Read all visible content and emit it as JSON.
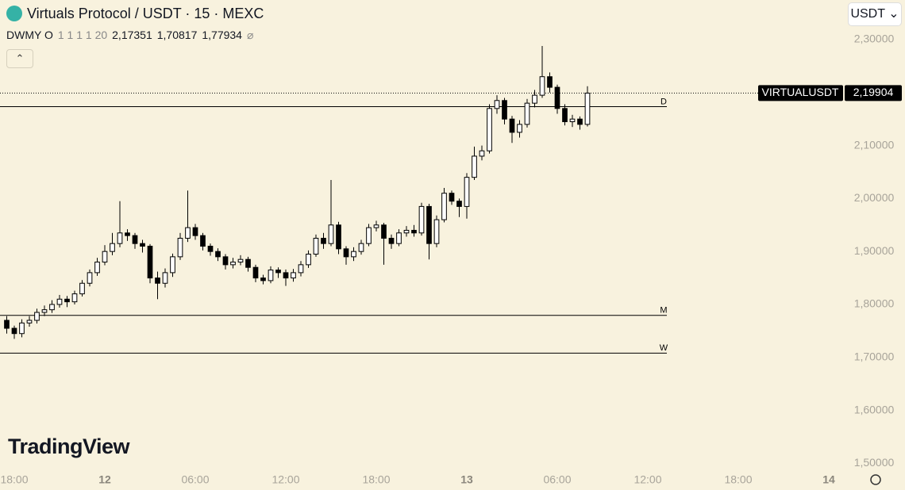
{
  "chart_data": {
    "type": "candlestick",
    "title": "Virtuals Protocol / USDT · 15 · MEXC",
    "currency": "USDT",
    "watermark": "TradingView",
    "indicator": {
      "name": "DWMY O",
      "params": "1 1 1 1 20",
      "symbol": "⌀",
      "levels": [
        {
          "name": "D",
          "value": 2.17351,
          "label": "2,17351"
        },
        {
          "name": "W",
          "value": 1.70817,
          "label": "1,70817"
        },
        {
          "name": "M",
          "value": 1.77934,
          "label": "1,77934"
        }
      ]
    },
    "last_price": {
      "symbol": "VIRTUALUSDT",
      "value": 2.19904,
      "label": "2,19904"
    },
    "colors": {
      "up": "#ffffff",
      "down": "#000000",
      "border": "#000000"
    },
    "x": [
      -0.5,
      0,
      0.5,
      1,
      1.5,
      2,
      2.5,
      3,
      3.5,
      4,
      4.5,
      5,
      5.5,
      6,
      6.5,
      7,
      7.5,
      8,
      8.5,
      9,
      9.5,
      10,
      10.5,
      11,
      11.5,
      12,
      12.5,
      13,
      13.5,
      14,
      14.5,
      15,
      15.5,
      16,
      16.5,
      17,
      17.5,
      18,
      18.5,
      19,
      19.5,
      20,
      20.5,
      21,
      21.5,
      22,
      22.5,
      23,
      23.5,
      24,
      24.5,
      25,
      25.5,
      26,
      26.5,
      27,
      27.5,
      28,
      28.5,
      29,
      29.5,
      30,
      30.5,
      31,
      31.5,
      32,
      32.5,
      33,
      33.5,
      34,
      34.5,
      35,
      35.5,
      36,
      36.5,
      37,
      37.5,
      38
    ],
    "open": [
      1.77,
      1.755,
      1.745,
      1.765,
      1.77,
      1.785,
      1.79,
      1.8,
      1.81,
      1.805,
      1.82,
      1.84,
      1.86,
      1.88,
      1.9,
      1.915,
      1.935,
      1.93,
      1.915,
      1.91,
      1.85,
      1.84,
      1.86,
      1.89,
      1.925,
      1.945,
      1.93,
      1.91,
      1.9,
      1.89,
      1.875,
      1.88,
      1.885,
      1.87,
      1.85,
      1.845,
      1.865,
      1.86,
      1.85,
      1.86,
      1.875,
      1.895,
      1.925,
      1.915,
      1.95,
      1.905,
      1.89,
      1.9,
      1.915,
      1.945,
      1.95,
      1.925,
      1.915,
      1.935,
      1.94,
      1.935,
      1.985,
      1.915,
      1.96,
      2.01,
      1.995,
      1.985,
      2.04,
      2.08,
      2.09,
      2.17,
      2.185,
      2.15,
      2.125,
      2.14,
      2.18,
      2.195,
      2.23,
      2.21,
      2.17,
      2.145,
      2.15,
      2.14
    ],
    "high": [
      1.778,
      1.76,
      1.772,
      1.778,
      1.792,
      1.798,
      1.808,
      1.818,
      1.816,
      1.826,
      1.846,
      1.866,
      1.888,
      1.912,
      1.935,
      1.995,
      1.942,
      1.935,
      1.922,
      1.914,
      1.862,
      1.868,
      1.896,
      1.935,
      2.015,
      1.952,
      1.935,
      1.915,
      1.906,
      1.895,
      1.888,
      1.893,
      1.89,
      1.875,
      1.856,
      1.872,
      1.87,
      1.866,
      1.867,
      1.882,
      1.902,
      1.932,
      1.935,
      2.035,
      1.956,
      1.91,
      1.908,
      1.922,
      1.952,
      1.958,
      1.954,
      1.932,
      1.942,
      1.948,
      1.95,
      1.992,
      1.99,
      1.968,
      2.02,
      2.015,
      2.0,
      2.048,
      2.098,
      2.1,
      2.178,
      2.195,
      2.19,
      2.156,
      2.148,
      2.188,
      2.205,
      2.288,
      2.238,
      2.215,
      2.178,
      2.158,
      2.155,
      2.212
    ],
    "low": [
      1.745,
      1.735,
      1.738,
      1.758,
      1.764,
      1.778,
      1.784,
      1.794,
      1.795,
      1.8,
      1.815,
      1.834,
      1.854,
      1.874,
      1.893,
      1.908,
      1.92,
      1.905,
      1.898,
      1.84,
      1.81,
      1.832,
      1.852,
      1.884,
      1.918,
      1.922,
      1.902,
      1.892,
      1.882,
      1.866,
      1.868,
      1.874,
      1.862,
      1.842,
      1.838,
      1.84,
      1.85,
      1.835,
      1.843,
      1.853,
      1.869,
      1.89,
      1.905,
      1.91,
      1.895,
      1.875,
      1.882,
      1.894,
      1.91,
      1.938,
      1.875,
      1.905,
      1.91,
      1.928,
      1.928,
      1.93,
      1.885,
      1.908,
      1.955,
      1.988,
      1.965,
      1.962,
      2.035,
      2.072,
      2.085,
      2.16,
      2.14,
      2.105,
      2.115,
      2.134,
      2.172,
      2.19,
      2.2,
      2.16,
      2.138,
      2.135,
      2.13,
      2.136
    ],
    "close": [
      1.755,
      1.745,
      1.765,
      1.77,
      1.785,
      1.79,
      1.8,
      1.81,
      1.805,
      1.82,
      1.84,
      1.86,
      1.88,
      1.9,
      1.915,
      1.935,
      1.93,
      1.915,
      1.91,
      1.85,
      1.84,
      1.86,
      1.89,
      1.925,
      1.945,
      1.93,
      1.91,
      1.9,
      1.89,
      1.875,
      1.88,
      1.885,
      1.87,
      1.85,
      1.845,
      1.865,
      1.86,
      1.85,
      1.86,
      1.875,
      1.895,
      1.925,
      1.915,
      1.95,
      1.905,
      1.89,
      1.9,
      1.915,
      1.945,
      1.95,
      1.925,
      1.915,
      1.935,
      1.94,
      1.935,
      1.985,
      1.915,
      1.96,
      2.01,
      1.995,
      1.985,
      2.04,
      2.08,
      2.09,
      2.17,
      2.185,
      2.15,
      2.125,
      2.14,
      2.18,
      2.195,
      2.23,
      2.21,
      2.17,
      2.145,
      2.15,
      2.14,
      2.199
    ],
    "xlim": [
      -0.947,
      54.842
    ],
    "xticks": [
      {
        "value": 0,
        "label": "18:00"
      },
      {
        "value": 6,
        "label": "12"
      },
      {
        "value": 12,
        "label": "06:00"
      },
      {
        "value": 18,
        "label": "12:00"
      },
      {
        "value": 24,
        "label": "18:00"
      },
      {
        "value": 30,
        "label": "13"
      },
      {
        "value": 36,
        "label": "06:00"
      },
      {
        "value": 42,
        "label": "12:00"
      },
      {
        "value": 48,
        "label": "18:00"
      },
      {
        "value": 54,
        "label": "14"
      }
    ],
    "ylim": [
      1.4841,
      2.3748
    ],
    "yticks": [
      {
        "value": 1.5,
        "label": "1,50000"
      },
      {
        "value": 1.6,
        "label": "1,60000"
      },
      {
        "value": 1.7,
        "label": "1,70000"
      },
      {
        "value": 1.8,
        "label": "1,80000"
      },
      {
        "value": 1.9,
        "label": "1,90000"
      },
      {
        "value": 2.0,
        "label": "2,00000"
      },
      {
        "value": 2.1,
        "label": "2,10000"
      },
      {
        "value": 2.2,
        "label": "2,20000"
      },
      {
        "value": 2.3,
        "label": "2,30000"
      }
    ]
  }
}
